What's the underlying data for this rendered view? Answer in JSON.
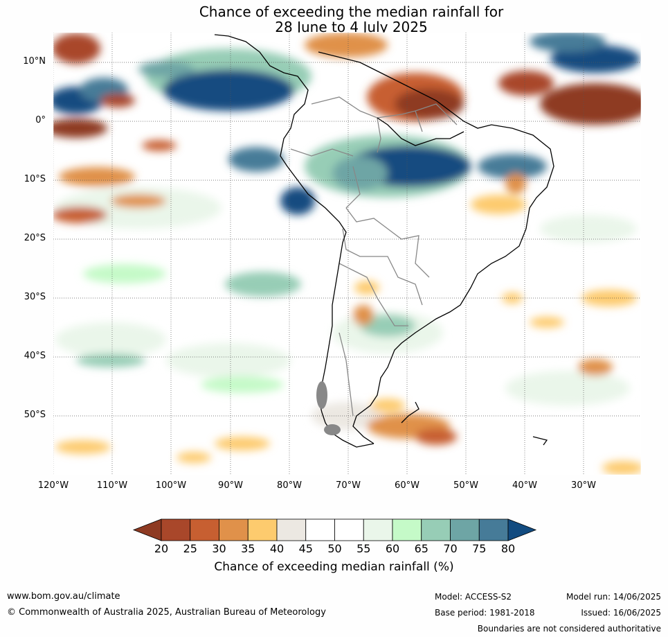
{
  "title": {
    "line1": "Chance of exceeding the median rainfall for",
    "line2": "28 June to 4 July 2025"
  },
  "map": {
    "region": "South America and surrounding oceans",
    "lat_ticks": [
      "10°N",
      "0°",
      "10°S",
      "20°S",
      "30°S",
      "40°S",
      "50°S"
    ],
    "lon_ticks": [
      "120°W",
      "110°W",
      "100°W",
      "90°W",
      "80°W",
      "70°W",
      "60°W",
      "50°W",
      "40°W",
      "30°W"
    ],
    "gridlines": true
  },
  "colorbar": {
    "ticks": [
      "20",
      "25",
      "30",
      "35",
      "40",
      "45",
      "50",
      "55",
      "60",
      "65",
      "70",
      "75",
      "80"
    ],
    "colors": [
      "#8e3a22",
      "#a9472a",
      "#c75f31",
      "#e0914a",
      "#fdcb6e",
      "#ece8e2",
      "#ffffff",
      "#ffffff",
      "#eaf6ea",
      "#c5fac8",
      "#97cdb6",
      "#6ea5a5",
      "#467b98",
      "#124b80"
    ],
    "label": "Chance of exceeding median rainfall (%)"
  },
  "footer": {
    "website": "www.bom.gov.au/climate",
    "copyright": "© Commonwealth of Australia 2025, Australian Bureau of Meteorology",
    "model": "Model: ACCESS-S2",
    "base_period": "Base period: 1981-2018",
    "model_run": "Model run: 14/06/2025",
    "issued": "Issued: 16/06/2025",
    "disclaimer": "Boundaries are not considered authoritative"
  }
}
